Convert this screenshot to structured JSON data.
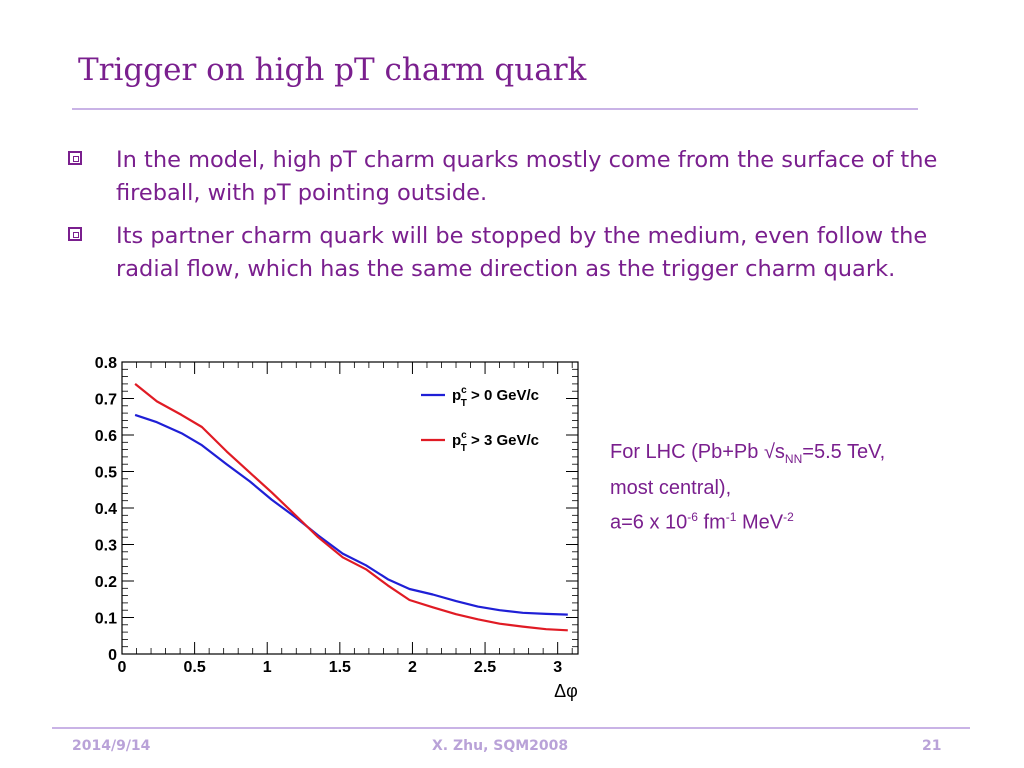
{
  "slide": {
    "title": "Trigger on high pT charm quark",
    "bullets": [
      "In the model, high pT charm quarks mostly come from the surface of the fireball, with pT pointing outside.",
      "Its partner charm quark will be stopped by the medium, even follow the radial flow, which has the same direction as the trigger charm quark."
    ],
    "note": {
      "line1_prefix": "For LHC (Pb+Pb  √s",
      "line1_sub": "NN",
      "line1_suffix": "=5.5 TeV,",
      "line2": "most central),",
      "line3_a": "a=6 x 10",
      "line3_a_sup": "-6",
      "line3_b": " fm",
      "line3_b_sup": "-1",
      "line3_c": " MeV",
      "line3_c_sup": "-2"
    },
    "footer": {
      "date": "2014/9/14",
      "author": "X. Zhu, SQM2008",
      "page": "21"
    }
  },
  "colors": {
    "accent": "#7a1f8e",
    "rule": "#c9b3e6",
    "footer": "#b9a2d8",
    "series_blue": "#1f1fd6",
    "series_red": "#e01b24"
  },
  "chart_data": {
    "type": "line",
    "xlabel": "Δφ",
    "ylabel": "",
    "xlim": [
      0,
      3.14
    ],
    "ylim": [
      0,
      0.8
    ],
    "xticks": [
      0,
      0.5,
      1,
      1.5,
      2,
      2.5,
      3
    ],
    "xtick_labels": [
      "0",
      "0.5",
      "1",
      "1.5",
      "2",
      "2.5",
      "3"
    ],
    "yticks": [
      0,
      0.1,
      0.2,
      0.3,
      0.4,
      0.5,
      0.6,
      0.7,
      0.8
    ],
    "ytick_labels": [
      "0",
      "0.1",
      "0.2",
      "0.3",
      "0.4",
      "0.5",
      "0.6",
      "0.7",
      "0.8"
    ],
    "legend_position": "top-right",
    "series": [
      {
        "name": "p_T^c > 0 GeV/c",
        "legend_main": "p",
        "legend_sup": "c",
        "legend_sub": "T",
        "legend_rest": " > 0 GeV/c",
        "color": "#1f1fd6",
        "x": [
          0.09,
          0.24,
          0.41,
          0.55,
          0.72,
          0.88,
          1.03,
          1.2,
          1.35,
          1.52,
          1.68,
          1.83,
          1.98,
          2.14,
          2.3,
          2.45,
          2.6,
          2.76,
          2.92,
          3.07
        ],
        "y": [
          0.655,
          0.635,
          0.605,
          0.572,
          0.52,
          0.473,
          0.423,
          0.373,
          0.325,
          0.275,
          0.243,
          0.205,
          0.178,
          0.163,
          0.145,
          0.13,
          0.12,
          0.113,
          0.11,
          0.108
        ]
      },
      {
        "name": "p_T^c > 3 GeV/c",
        "legend_main": "p",
        "legend_sup": "c",
        "legend_sub": "T",
        "legend_rest": " > 3 GeV/c",
        "color": "#e01b24",
        "x": [
          0.09,
          0.24,
          0.41,
          0.55,
          0.72,
          0.88,
          1.03,
          1.2,
          1.35,
          1.52,
          1.68,
          1.83,
          1.98,
          2.14,
          2.3,
          2.45,
          2.6,
          2.76,
          2.92,
          3.07
        ],
        "y": [
          0.74,
          0.692,
          0.655,
          0.622,
          0.555,
          0.497,
          0.443,
          0.378,
          0.32,
          0.265,
          0.232,
          0.188,
          0.148,
          0.128,
          0.109,
          0.095,
          0.083,
          0.075,
          0.068,
          0.065
        ]
      }
    ]
  }
}
